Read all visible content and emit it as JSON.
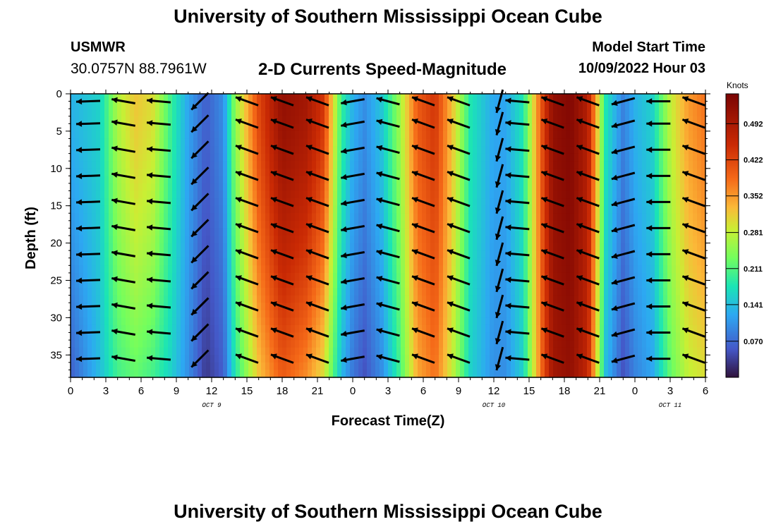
{
  "page": {
    "title_top": "University of Southern Mississippi Ocean Cube",
    "station_name": "USMWR",
    "coordinates": "30.0757N  88.7961W",
    "plot_title": "2-D Currents Speed-Magnitude",
    "model_start_label": "Model Start Time",
    "model_start_value": "10/09/2022 Hour 03",
    "title_bottom": "University of Southern Mississippi Ocean Cube"
  },
  "chart_data": {
    "type": "heatmap",
    "title": "2-D Currents Speed-Magnitude",
    "xlabel": "Forecast Time(Z)",
    "ylabel": "Depth (ft)",
    "x_tick_labels": [
      "0",
      "3",
      "6",
      "9",
      "12",
      "15",
      "18",
      "21",
      "0",
      "3",
      "6",
      "9",
      "12",
      "15",
      "18",
      "21",
      "0",
      "3",
      "6"
    ],
    "x_range_hours": [
      0,
      54
    ],
    "y_ticks": [
      0,
      5,
      10,
      15,
      20,
      25,
      30,
      35
    ],
    "ylim": [
      0,
      38
    ],
    "date_labels": [
      {
        "text": "OCT 9",
        "hour": 12
      },
      {
        "text": "OCT 10",
        "hour": 36
      },
      {
        "text": "OCT 11",
        "hour": 51
      }
    ],
    "colorbar": {
      "label": "Knots",
      "min": 0,
      "max": 0.55,
      "tick_values": [
        0.492,
        0.422,
        0.352,
        0.281,
        0.211,
        0.141,
        0.07
      ],
      "tick_labels": [
        "0.492",
        "0.422",
        "0.352",
        "0.281",
        "0.211",
        "0.141",
        "0.070"
      ]
    },
    "speed_profile": {
      "hours": [
        0,
        2.5,
        4,
        5.5,
        7,
        8.5,
        10,
        11.5,
        13,
        14,
        16,
        18,
        20,
        21.5,
        23,
        24,
        25,
        26.5,
        28,
        29.5,
        31,
        32.5,
        34,
        36,
        37,
        38.5,
        40,
        41,
        42.5,
        44,
        45.5,
        47,
        48,
        49.5,
        51,
        52.5,
        54
      ],
      "surface": [
        0.13,
        0.16,
        0.27,
        0.32,
        0.3,
        0.2,
        0.12,
        0.06,
        0.1,
        0.25,
        0.42,
        0.52,
        0.5,
        0.44,
        0.2,
        0.13,
        0.1,
        0.15,
        0.26,
        0.4,
        0.44,
        0.32,
        0.18,
        0.12,
        0.12,
        0.18,
        0.4,
        0.52,
        0.54,
        0.48,
        0.18,
        0.09,
        0.13,
        0.16,
        0.28,
        0.35,
        0.38
      ],
      "bottom": [
        0.06,
        0.14,
        0.2,
        0.22,
        0.2,
        0.16,
        0.1,
        0.03,
        0.06,
        0.18,
        0.32,
        0.4,
        0.36,
        0.3,
        0.14,
        0.08,
        0.05,
        0.1,
        0.2,
        0.34,
        0.38,
        0.28,
        0.16,
        0.1,
        0.1,
        0.16,
        0.38,
        0.5,
        0.52,
        0.46,
        0.14,
        0.05,
        0.09,
        0.12,
        0.22,
        0.28,
        0.3
      ]
    },
    "vector_columns": [
      {
        "hour": 1.5,
        "angle_deg": 182
      },
      {
        "hour": 4.5,
        "angle_deg": 170
      },
      {
        "hour": 7.5,
        "angle_deg": 175
      },
      {
        "hour": 11,
        "angle_deg": 225
      },
      {
        "hour": 15,
        "angle_deg": 160
      },
      {
        "hour": 18,
        "angle_deg": 160
      },
      {
        "hour": 21,
        "angle_deg": 160
      },
      {
        "hour": 24,
        "angle_deg": 190
      },
      {
        "hour": 27,
        "angle_deg": 165
      },
      {
        "hour": 30,
        "angle_deg": 160
      },
      {
        "hour": 33,
        "angle_deg": 160
      },
      {
        "hour": 36.5,
        "angle_deg": 255
      },
      {
        "hour": 38,
        "angle_deg": 175
      },
      {
        "hour": 41,
        "angle_deg": 160
      },
      {
        "hour": 44,
        "angle_deg": 160
      },
      {
        "hour": 47,
        "angle_deg": 195
      },
      {
        "hour": 50,
        "angle_deg": 180
      },
      {
        "hour": 53,
        "angle_deg": 160
      }
    ],
    "vector_depths": [
      1,
      4,
      7.5,
      11,
      14.5,
      18,
      21.5,
      25,
      28.5,
      32,
      35.5
    ]
  }
}
